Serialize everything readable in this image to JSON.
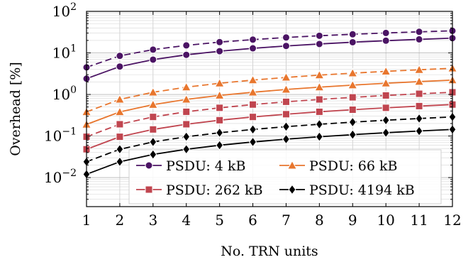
{
  "chart_data": {
    "type": "line",
    "xlabel": "No. TRN units",
    "ylabel": "Overhead [%]",
    "xlim": [
      1,
      12
    ],
    "ylim": [
      0.002,
      100
    ],
    "yscale": "log",
    "grid": true,
    "legend_position": "lower-right",
    "x": [
      1,
      2,
      3,
      4,
      5,
      6,
      7,
      8,
      9,
      10,
      11,
      12
    ],
    "x_ticks": [
      "1",
      "2",
      "3",
      "4",
      "5",
      "6",
      "7",
      "8",
      "9",
      "10",
      "11",
      "12"
    ],
    "y_ticks": [
      {
        "base": "10",
        "exp": "−2",
        "value": 0.01
      },
      {
        "base": "10",
        "exp": "−1",
        "value": 0.1
      },
      {
        "base": "10",
        "exp": "0",
        "value": 1
      },
      {
        "base": "10",
        "exp": "1",
        "value": 10
      },
      {
        "base": "10",
        "exp": "2",
        "value": 100
      }
    ],
    "series": [
      {
        "name": "PSDU: 4 kB",
        "color": "#4b1464",
        "marker": "circle",
        "solid": [
          2.4,
          4.7,
          6.9,
          9.0,
          11.0,
          12.9,
          14.7,
          16.4,
          18.1,
          19.7,
          21.2,
          22.7
        ],
        "dashed": [
          4.5,
          8.5,
          12.0,
          15.2,
          18.2,
          20.9,
          23.5,
          25.9,
          28.1,
          30.2,
          32.2,
          34.0
        ]
      },
      {
        "name": "PSDU: 66 kB",
        "color": "#e8762e",
        "marker": "triangle",
        "solid": [
          0.19,
          0.38,
          0.57,
          0.76,
          0.95,
          1.13,
          1.32,
          1.5,
          1.68,
          1.86,
          2.04,
          2.22
        ],
        "dashed": [
          0.38,
          0.76,
          1.13,
          1.5,
          1.86,
          2.22,
          2.57,
          2.92,
          3.26,
          3.6,
          3.93,
          4.27
        ]
      },
      {
        "name": "PSDU: 262 kB",
        "color": "#c0454f",
        "marker": "square",
        "solid": [
          0.048,
          0.096,
          0.144,
          0.192,
          0.24,
          0.288,
          0.335,
          0.383,
          0.43,
          0.477,
          0.525,
          0.572
        ],
        "dashed": [
          0.096,
          0.192,
          0.288,
          0.383,
          0.477,
          0.572,
          0.666,
          0.76,
          0.853,
          0.946,
          1.04,
          1.13
        ]
      },
      {
        "name": "PSDU: 4194 kB",
        "color": "#000000",
        "marker": "diamond",
        "solid": [
          0.012,
          0.024,
          0.036,
          0.048,
          0.06,
          0.072,
          0.084,
          0.096,
          0.108,
          0.12,
          0.132,
          0.144
        ],
        "dashed": [
          0.024,
          0.048,
          0.072,
          0.096,
          0.12,
          0.144,
          0.168,
          0.192,
          0.216,
          0.24,
          0.264,
          0.288
        ]
      }
    ]
  }
}
